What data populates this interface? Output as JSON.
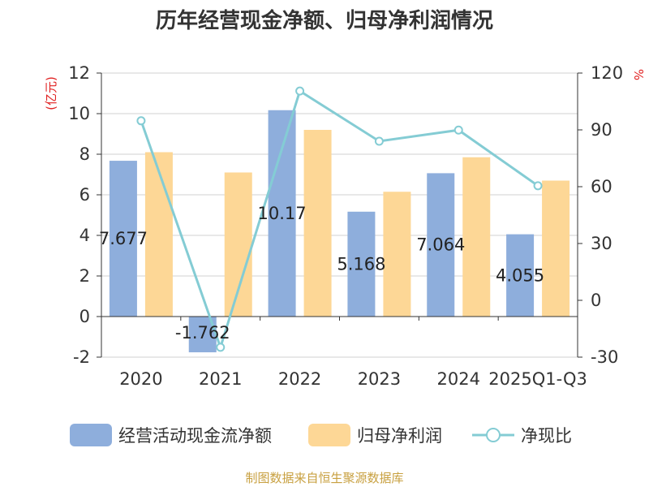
{
  "chart_data": {
    "type": "bar",
    "title": "历年经营现金净额、归母净利润情况",
    "categories": [
      "2020",
      "2021",
      "2022",
      "2023",
      "2024",
      "2025Q1-Q3"
    ],
    "y_left_unit": "(亿元)",
    "y_right_unit": "%",
    "ylim_left": [
      -2,
      12
    ],
    "yticks_left": [
      -2,
      0,
      2,
      4,
      6,
      8,
      10,
      12
    ],
    "ylim_right": [
      -30,
      120
    ],
    "yticks_right": [
      -30,
      0,
      30,
      60,
      90,
      120
    ],
    "grid": true,
    "legend_position": "bottom",
    "series": [
      {
        "name": "经营活动现金流净额",
        "type": "bar",
        "axis": "left",
        "color": "#8eaedc",
        "values": [
          7.677,
          -1.762,
          10.17,
          5.168,
          7.064,
          4.055
        ],
        "labels": [
          "7.677",
          "-1.762",
          "10.17",
          "5.168",
          "7.064",
          "4.055"
        ]
      },
      {
        "name": "归母净利润",
        "type": "bar",
        "axis": "left",
        "color": "#fdd796",
        "values": [
          8.1,
          7.1,
          9.2,
          6.15,
          7.85,
          6.7
        ]
      },
      {
        "name": "净现比",
        "type": "line",
        "axis": "right",
        "color": "#84ccd4",
        "values": [
          94.8,
          -24.8,
          110.5,
          84.0,
          89.9,
          60.5
        ]
      }
    ],
    "source": "制图数据来自恒生聚源数据库"
  }
}
